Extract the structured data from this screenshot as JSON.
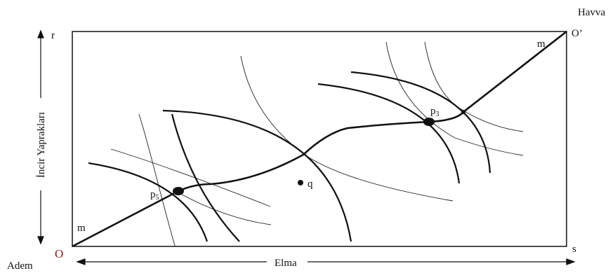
{
  "labels": {
    "origin_adem": "O",
    "origin_havva": "O’",
    "adem": "Adem",
    "havva": "Havva",
    "corner_r": "r",
    "corner_s": "s",
    "x_axis": "Elma",
    "y_axis": "İncir Yaprakları",
    "curve_m_low": "m",
    "curve_m_high": "m",
    "point_q": "q",
    "point_p5_main": "p",
    "point_p5_sub": "5",
    "point_p3_main": "p",
    "point_p3_sub": "3"
  },
  "colors": {
    "origin_adem": "#8b1a1a",
    "ink": "#111111"
  }
}
